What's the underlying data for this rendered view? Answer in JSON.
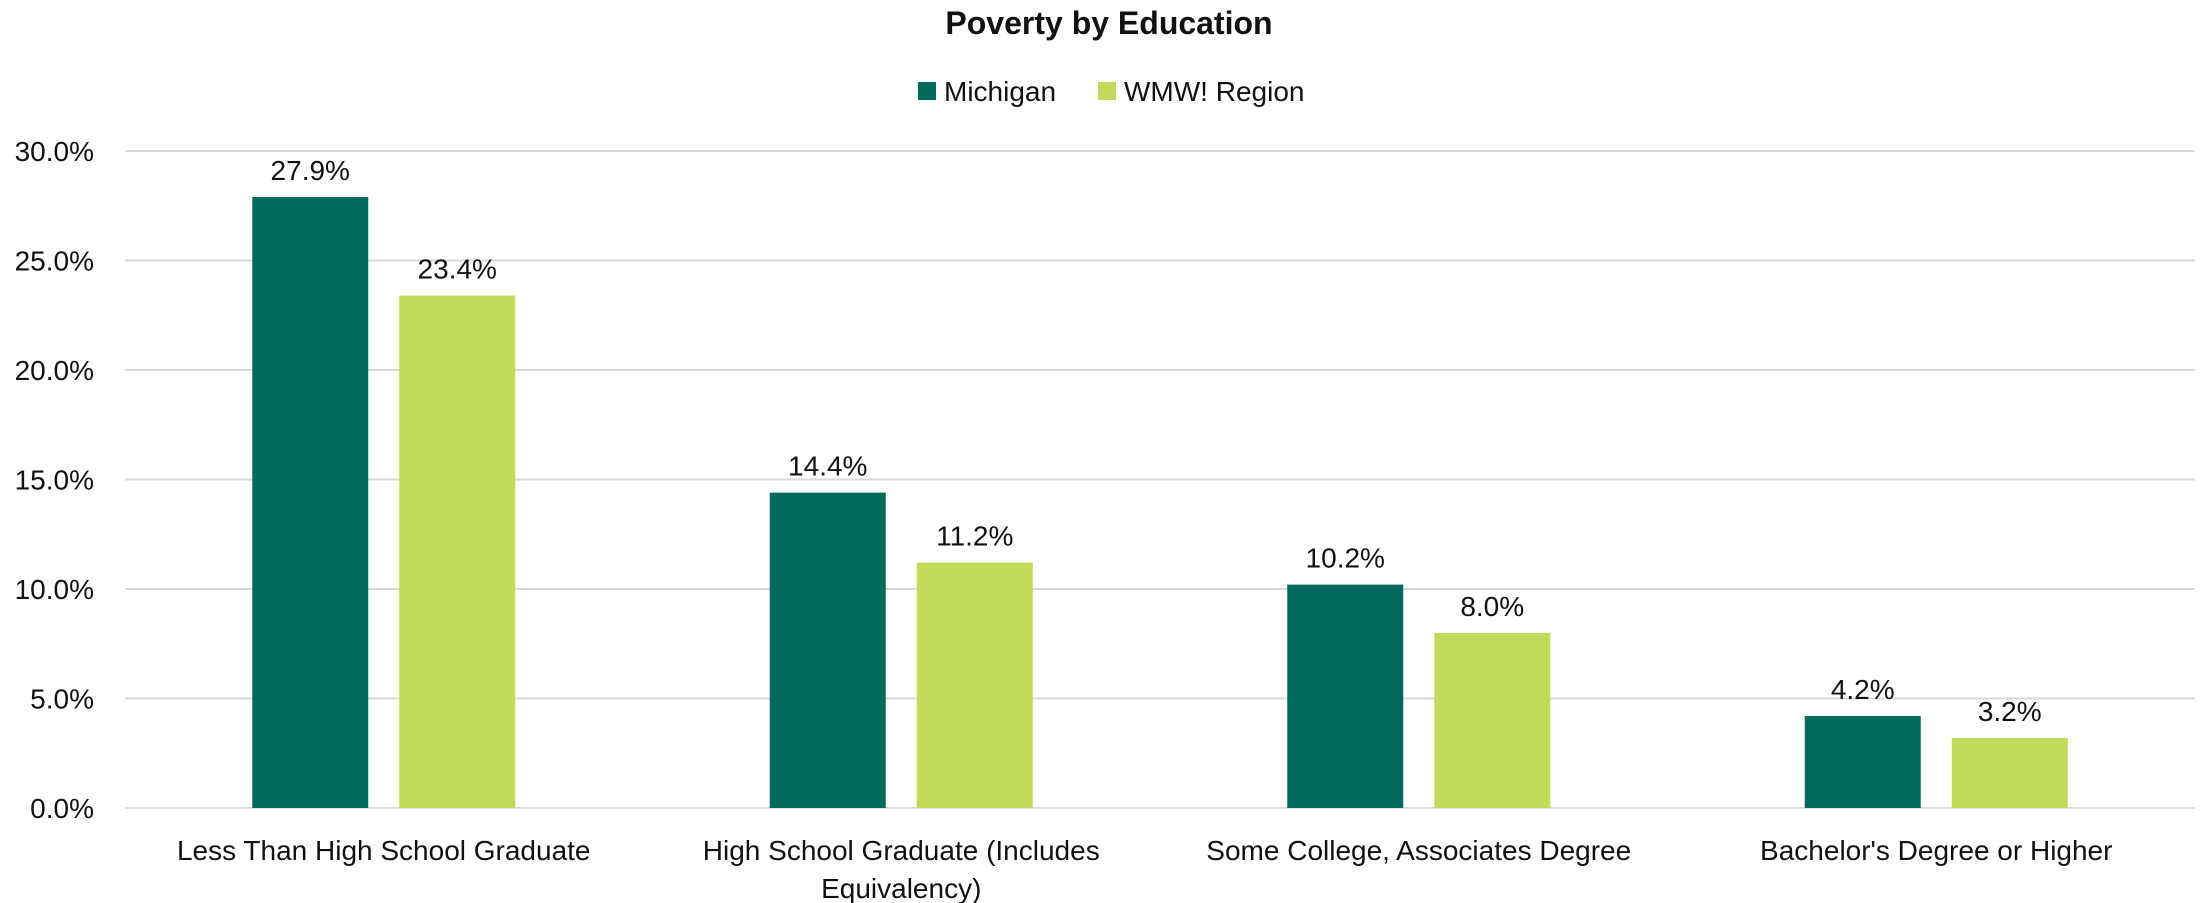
{
  "chart_data": {
    "type": "bar",
    "title": "Poverty by Education",
    "xlabel": "",
    "ylabel": "",
    "categories": [
      [
        "Less Than High School Graduate"
      ],
      [
        "High School Graduate (Includes",
        "Equivalency)"
      ],
      [
        "Some College, Associates Degree"
      ],
      [
        "Bachelor's Degree or Higher"
      ]
    ],
    "series": [
      {
        "name": "Michigan",
        "color": "#006b5c",
        "values": [
          27.9,
          14.4,
          10.2,
          4.2
        ],
        "labels": [
          "27.9%",
          "14.4%",
          "10.2%",
          "4.2%"
        ]
      },
      {
        "name": "WMW! Region",
        "color": "#c2da5a",
        "values": [
          23.4,
          11.2,
          8.0,
          3.2
        ],
        "labels": [
          "23.4%",
          "11.2%",
          "8.0%",
          "3.2%"
        ]
      }
    ],
    "ylim": [
      0,
      30
    ],
    "yticks": [
      "0.0%",
      "5.0%",
      "10.0%",
      "15.0%",
      "20.0%",
      "25.0%",
      "30.0%"
    ],
    "grid": true,
    "legend": "top-center"
  }
}
